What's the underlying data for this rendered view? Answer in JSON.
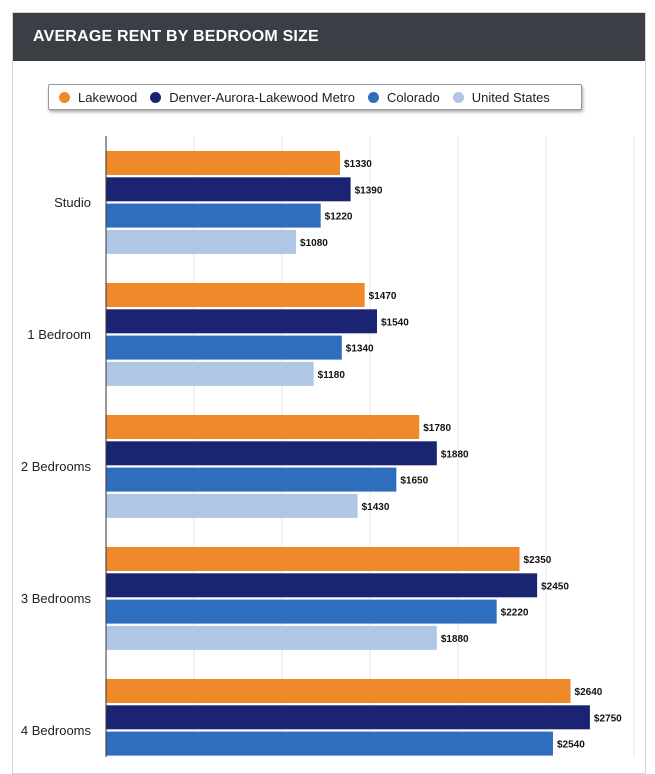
{
  "header": {
    "title": "AVERAGE RENT BY BEDROOM SIZE"
  },
  "chart_data": {
    "type": "bar",
    "orientation": "horizontal",
    "title": "AVERAGE RENT BY BEDROOM SIZE",
    "categories": [
      "Studio",
      "1 Bedroom",
      "2 Bedrooms",
      "3 Bedrooms",
      "4 Bedrooms"
    ],
    "series": [
      {
        "name": "Lakewood",
        "color": "#f0892a",
        "values": [
          1330,
          1470,
          1780,
          2350,
          2640
        ],
        "labels": [
          "$1330",
          "$1470",
          "$1780",
          "$2350",
          "$2640"
        ]
      },
      {
        "name": "Denver-Aurora-Lakewood Metro",
        "color": "#1a2473",
        "values": [
          1390,
          1540,
          1880,
          2450,
          2750
        ],
        "labels": [
          "$1390",
          "$1540",
          "$1880",
          "$2450",
          "$2750"
        ]
      },
      {
        "name": "Colorado",
        "color": "#2e6ebc",
        "values": [
          1220,
          1340,
          1650,
          2220,
          2540
        ],
        "labels": [
          "$1220",
          "$1340",
          "$1650",
          "$2220",
          "$2540"
        ]
      },
      {
        "name": "United States",
        "color": "#b0c6e6",
        "values": [
          1080,
          1180,
          1430,
          1880,
          null
        ],
        "labels": [
          "$1080",
          "$1180",
          "$1430",
          "$1880",
          ""
        ]
      }
    ],
    "xlim": [
      0,
      3000
    ],
    "legend_position": "top-center",
    "grid": true
  }
}
